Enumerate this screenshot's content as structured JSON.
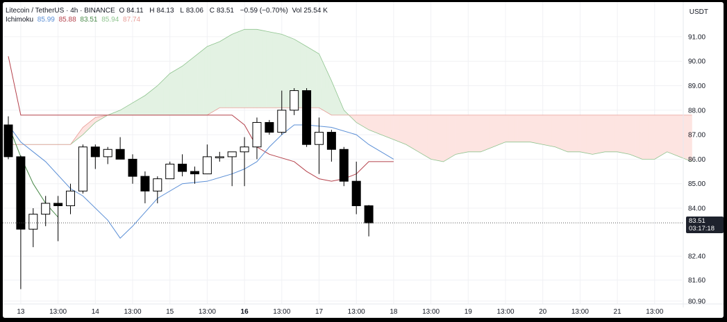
{
  "header": {
    "symbol": "Litecoin / TetherUS · 4h · BINANCE",
    "open_label": "O",
    "open": "84.11",
    "high_label": "H",
    "high": "84.13",
    "low_label": "L",
    "low": "83.06",
    "close_label": "C",
    "close": "83.51",
    "change": "−0.59 (−0.70%)",
    "vol_label": "Vol",
    "vol": "25.54 K"
  },
  "indicator": {
    "name": "Ichimoku",
    "values": [
      {
        "text": "85.99",
        "color": "#5b8fd6"
      },
      {
        "text": "85.88",
        "color": "#b5414b"
      },
      {
        "text": "83.51",
        "color": "#4a8a4a"
      },
      {
        "text": "85.94",
        "color": "#8fc48f"
      },
      {
        "text": "87.74",
        "color": "#e89b95"
      }
    ]
  },
  "axis": {
    "currency": "USDT",
    "y_labels": [
      {
        "text": "91.00",
        "value": 91.0
      },
      {
        "text": "90.00",
        "value": 90.0
      },
      {
        "text": "89.00",
        "value": 89.0
      },
      {
        "text": "88.00",
        "value": 88.0
      },
      {
        "text": "87.00",
        "value": 87.0
      },
      {
        "text": "86.00",
        "value": 86.0
      },
      {
        "text": "85.00",
        "value": 85.0
      },
      {
        "text": "84.00",
        "value": 84.0
      },
      {
        "text": "82.40",
        "value": 82.4
      },
      {
        "text": "81.60",
        "value": 81.6
      },
      {
        "text": "80.90",
        "value": 80.9
      }
    ],
    "x_labels": [
      {
        "text": "13",
        "bar": 1,
        "bold": false
      },
      {
        "text": "13:00",
        "bar": 4,
        "bold": false
      },
      {
        "text": "14",
        "bar": 7,
        "bold": false
      },
      {
        "text": "13:00",
        "bar": 10,
        "bold": false
      },
      {
        "text": "15",
        "bar": 13,
        "bold": false
      },
      {
        "text": "13:00",
        "bar": 16,
        "bold": false
      },
      {
        "text": "16",
        "bar": 19,
        "bold": true
      },
      {
        "text": "13:00",
        "bar": 22,
        "bold": false
      },
      {
        "text": "17",
        "bar": 25,
        "bold": false
      },
      {
        "text": "13:00",
        "bar": 28,
        "bold": false
      },
      {
        "text": "18",
        "bar": 31,
        "bold": false
      },
      {
        "text": "13:00",
        "bar": 34,
        "bold": false
      },
      {
        "text": "19",
        "bar": 37,
        "bold": false
      },
      {
        "text": "13:00",
        "bar": 40,
        "bold": false
      },
      {
        "text": "20",
        "bar": 43,
        "bold": false
      },
      {
        "text": "13:00",
        "bar": 46,
        "bold": false
      },
      {
        "text": "21",
        "bar": 49,
        "bold": false
      },
      {
        "text": "13:00",
        "bar": 52,
        "bold": false
      }
    ],
    "last_price": "83.51",
    "countdown": "03:17:18"
  },
  "chart_data": {
    "type": "candlestick",
    "colors": {
      "up_body": "#ffffff",
      "down_body": "#000000",
      "outline": "#000000",
      "tenkan": "#5b8fd6",
      "kijun": "#b5414b",
      "chikou": "#4a8a4a",
      "span_a": "#8fc48f",
      "span_b": "#e89b95",
      "cloud_up": "#e3f2e3",
      "cloud_down": "#fde4e1"
    },
    "candles": [
      {
        "o": 87.4,
        "h": 87.75,
        "l": 86.0,
        "c": 86.1
      },
      {
        "o": 86.1,
        "h": 86.15,
        "l": 81.3,
        "c": 83.3
      },
      {
        "o": 83.3,
        "h": 84.0,
        "l": 82.7,
        "c": 83.8
      },
      {
        "o": 83.8,
        "h": 84.5,
        "l": 83.4,
        "c": 84.2
      },
      {
        "o": 84.2,
        "h": 84.5,
        "l": 82.9,
        "c": 84.1
      },
      {
        "o": 84.1,
        "h": 85.0,
        "l": 83.8,
        "c": 84.7
      },
      {
        "o": 84.7,
        "h": 86.6,
        "l": 84.6,
        "c": 86.5
      },
      {
        "o": 86.5,
        "h": 86.6,
        "l": 85.6,
        "c": 86.1
      },
      {
        "o": 86.1,
        "h": 86.5,
        "l": 85.8,
        "c": 86.4
      },
      {
        "o": 86.4,
        "h": 86.9,
        "l": 86.0,
        "c": 86.0
      },
      {
        "o": 86.0,
        "h": 86.2,
        "l": 85.0,
        "c": 85.3
      },
      {
        "o": 85.3,
        "h": 85.5,
        "l": 84.2,
        "c": 84.7
      },
      {
        "o": 84.7,
        "h": 85.3,
        "l": 84.2,
        "c": 85.2
      },
      {
        "o": 85.2,
        "h": 85.9,
        "l": 85.2,
        "c": 85.8
      },
      {
        "o": 85.8,
        "h": 86.2,
        "l": 85.3,
        "c": 85.5
      },
      {
        "o": 85.5,
        "h": 85.7,
        "l": 85.0,
        "c": 85.4
      },
      {
        "o": 85.4,
        "h": 86.6,
        "l": 85.4,
        "c": 86.1
      },
      {
        "o": 86.1,
        "h": 86.3,
        "l": 85.9,
        "c": 86.1
      },
      {
        "o": 86.1,
        "h": 86.3,
        "l": 84.9,
        "c": 86.3
      },
      {
        "o": 86.3,
        "h": 86.9,
        "l": 84.9,
        "c": 86.5
      },
      {
        "o": 86.5,
        "h": 87.7,
        "l": 86.0,
        "c": 87.5
      },
      {
        "o": 87.5,
        "h": 87.6,
        "l": 87.0,
        "c": 87.1
      },
      {
        "o": 87.1,
        "h": 88.8,
        "l": 87.0,
        "c": 88.0
      },
      {
        "o": 88.0,
        "h": 88.9,
        "l": 87.8,
        "c": 88.8
      },
      {
        "o": 88.8,
        "h": 88.9,
        "l": 86.5,
        "c": 86.6
      },
      {
        "o": 86.6,
        "h": 87.7,
        "l": 85.4,
        "c": 87.1
      },
      {
        "o": 87.1,
        "h": 87.2,
        "l": 85.9,
        "c": 86.4
      },
      {
        "o": 86.4,
        "h": 86.5,
        "l": 84.9,
        "c": 85.1
      },
      {
        "o": 85.1,
        "h": 85.9,
        "l": 83.8,
        "c": 84.1
      },
      {
        "o": 84.1,
        "h": 84.13,
        "l": 83.06,
        "c": 83.51
      }
    ],
    "tenkan": [
      [
        0,
        87.4
      ],
      [
        1,
        86.7
      ],
      [
        2,
        86.3
      ],
      [
        3,
        85.9
      ],
      [
        5,
        84.8
      ],
      [
        6,
        84.5
      ],
      [
        8,
        83.6
      ],
      [
        9,
        83.0
      ],
      [
        10,
        83.4
      ],
      [
        12,
        84.4
      ],
      [
        14,
        85.0
      ],
      [
        16,
        85.1
      ],
      [
        18,
        85.4
      ],
      [
        19,
        85.6
      ],
      [
        20,
        85.9
      ],
      [
        21,
        86.5
      ],
      [
        22,
        87.0
      ],
      [
        23,
        87.4
      ],
      [
        24,
        87.4
      ],
      [
        26,
        87.3
      ],
      [
        28,
        87.0
      ],
      [
        29,
        86.6
      ],
      [
        30,
        86.3
      ],
      [
        31,
        86.0
      ]
    ],
    "kijun": [
      [
        0,
        90.2
      ],
      [
        1,
        87.8
      ],
      [
        18,
        87.8
      ],
      [
        19,
        87.4
      ],
      [
        20,
        86.5
      ],
      [
        21,
        86.2
      ],
      [
        23,
        85.9
      ],
      [
        24,
        85.5
      ],
      [
        25,
        85.2
      ],
      [
        26,
        85.1
      ],
      [
        27,
        85.2
      ],
      [
        28,
        85.4
      ],
      [
        29,
        85.9
      ],
      [
        31,
        85.9
      ]
    ],
    "chikou": [
      [
        0,
        87.4
      ],
      [
        1,
        86.1
      ],
      [
        2,
        85.0
      ],
      [
        3,
        84.2
      ],
      [
        4,
        83.7
      ]
    ],
    "span_a": [
      [
        0,
        86.6
      ],
      [
        1,
        86.6
      ],
      [
        5,
        86.6
      ],
      [
        6,
        87.0
      ],
      [
        7,
        87.5
      ],
      [
        8,
        87.8
      ],
      [
        9,
        88.0
      ],
      [
        10,
        88.3
      ],
      [
        11,
        88.6
      ],
      [
        12,
        89.0
      ],
      [
        13,
        89.5
      ],
      [
        14,
        89.8
      ],
      [
        15,
        90.2
      ],
      [
        16,
        90.6
      ],
      [
        17,
        90.8
      ],
      [
        18,
        91.1
      ],
      [
        19,
        91.3
      ],
      [
        20,
        91.3
      ],
      [
        21,
        91.2
      ],
      [
        22,
        91.1
      ],
      [
        23,
        90.9
      ],
      [
        24,
        90.6
      ],
      [
        25,
        90.3
      ],
      [
        26,
        89.2
      ],
      [
        27,
        88.0
      ],
      [
        28,
        87.5
      ],
      [
        29,
        87.2
      ],
      [
        30,
        87.0
      ],
      [
        31,
        86.8
      ],
      [
        32,
        86.6
      ],
      [
        33,
        86.3
      ],
      [
        34,
        86.0
      ],
      [
        35,
        85.9
      ],
      [
        36,
        86.2
      ],
      [
        37,
        86.3
      ],
      [
        38,
        86.3
      ],
      [
        39,
        86.5
      ],
      [
        40,
        86.7
      ],
      [
        41,
        86.7
      ],
      [
        42,
        86.7
      ],
      [
        43,
        86.6
      ],
      [
        44,
        86.5
      ],
      [
        45,
        86.3
      ],
      [
        46,
        86.3
      ],
      [
        47,
        86.2
      ],
      [
        48,
        86.3
      ],
      [
        49,
        86.3
      ],
      [
        50,
        86.2
      ],
      [
        51,
        86.0
      ],
      [
        52,
        86.0
      ],
      [
        53,
        86.3
      ],
      [
        54,
        86.1
      ],
      [
        55,
        85.9
      ]
    ],
    "span_b": [
      [
        0,
        86.6
      ],
      [
        5,
        86.6
      ],
      [
        6,
        87.3
      ],
      [
        7,
        87.7
      ],
      [
        8,
        87.8
      ],
      [
        16,
        87.8
      ],
      [
        17,
        88.1
      ],
      [
        25,
        88.1
      ],
      [
        26,
        87.8
      ],
      [
        55,
        87.8
      ]
    ],
    "last_price": 83.51,
    "ylim": [
      80.5,
      92.0
    ]
  }
}
